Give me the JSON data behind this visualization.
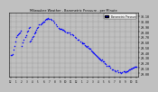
{
  "title": "Milwaukee Weather - Barometric Pressure - per Minute",
  "bg_color": "#c0c0c0",
  "plot_bg_color": "#c0c0c0",
  "dot_color": "#0000ff",
  "dot_size": 1.2,
  "grid_color": "#888888",
  "legend_label": "Barometric Pressure",
  "legend_color": "#0000ff",
  "x_tick_labels": [
    "12",
    "1",
    "2",
    "3",
    "4",
    "5",
    "6",
    "7",
    "8",
    "9",
    "10",
    "11",
    "12",
    "1",
    "2",
    "3",
    "4",
    "5",
    "6",
    "7",
    "8",
    "9",
    "10",
    "11"
  ],
  "y_tick_labels": [
    "29.00",
    "29.10",
    "29.20",
    "29.30",
    "29.40",
    "29.50",
    "29.60",
    "29.70",
    "29.80",
    "29.90",
    "30.00",
    "30.10"
  ],
  "y_ticks": [
    29.0,
    29.1,
    29.2,
    29.3,
    29.4,
    29.5,
    29.6,
    29.7,
    29.8,
    29.9,
    30.0,
    30.1
  ],
  "ylim": [
    28.93,
    30.18
  ],
  "xlim": [
    -0.3,
    23.3
  ]
}
